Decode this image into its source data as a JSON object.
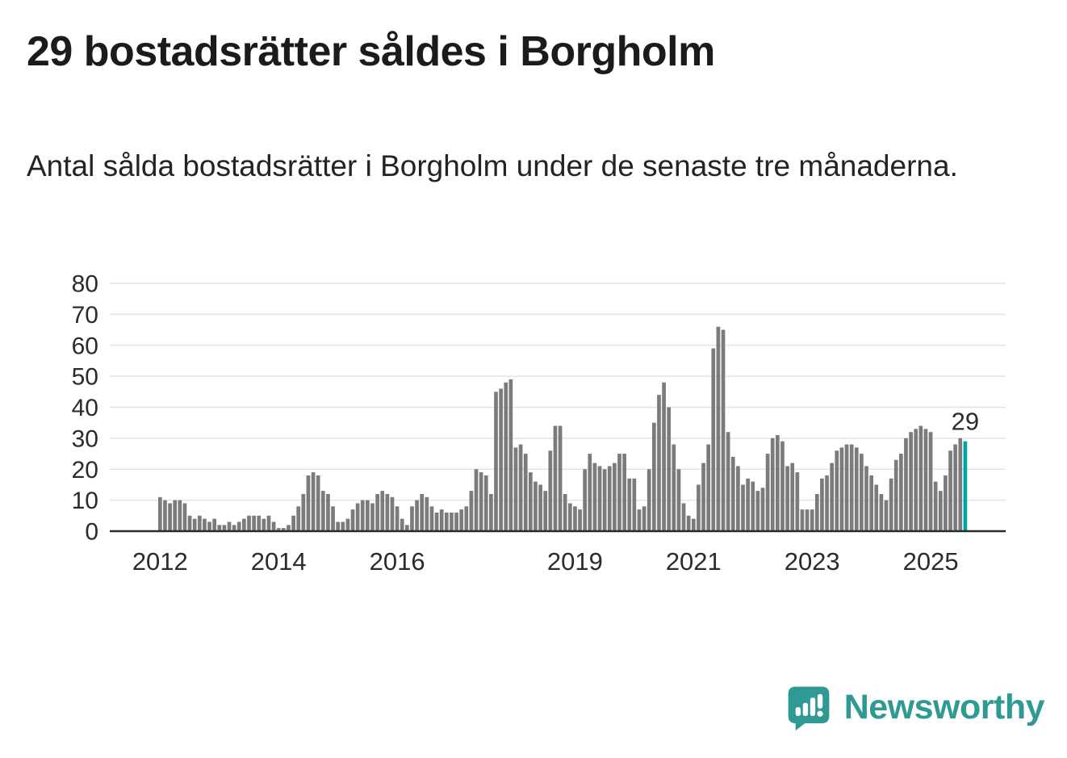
{
  "title": "29 bostadsrätter såldes i Borgholm",
  "subtitle": "Antal sålda bostadsrätter i Borgholm under de senaste tre månaderna.",
  "branding": {
    "name": "Newsworthy",
    "icon": "newsworthy-speech-bubble-chart-icon"
  },
  "colors": {
    "bar": "#7b7b7b",
    "highlight": "#00a3a3",
    "grid": "#e4e4e4",
    "axis": "#2b2b2b",
    "text": "#2b2b2b",
    "brand": "#2e9a93"
  },
  "chart_data": {
    "type": "bar",
    "title": "29 bostadsrätter såldes i Borgholm",
    "subtitle": "Antal sålda bostadsrätter i Borgholm under de senaste tre månaderna.",
    "xlabel": "",
    "ylabel": "",
    "start": "2012-01",
    "end": "2025-08",
    "frequency": "monthly",
    "x_tick_labels": [
      2012,
      2014,
      2016,
      2019,
      2021,
      2023,
      2025
    ],
    "ylim": [
      0,
      80
    ],
    "y_ticks": [
      0,
      10,
      20,
      30,
      40,
      50,
      60,
      70,
      80
    ],
    "grid": true,
    "legend": false,
    "highlight_last": true,
    "last_value_label": "29",
    "values": [
      11,
      10,
      9,
      10,
      10,
      9,
      5,
      4,
      5,
      4,
      3,
      4,
      2,
      2,
      3,
      2,
      3,
      4,
      5,
      5,
      5,
      4,
      5,
      3,
      1,
      1,
      2,
      5,
      8,
      12,
      18,
      19,
      18,
      13,
      12,
      8,
      3,
      3,
      4,
      7,
      9,
      10,
      10,
      9,
      12,
      13,
      12,
      11,
      8,
      4,
      2,
      8,
      10,
      12,
      11,
      8,
      6,
      7,
      6,
      6,
      6,
      7,
      8,
      13,
      20,
      19,
      18,
      12,
      45,
      46,
      48,
      49,
      27,
      28,
      25,
      19,
      16,
      15,
      13,
      26,
      34,
      34,
      12,
      9,
      8,
      7,
      20,
      25,
      22,
      21,
      20,
      21,
      22,
      25,
      25,
      17,
      17,
      7,
      8,
      20,
      35,
      44,
      48,
      40,
      28,
      20,
      9,
      5,
      4,
      15,
      22,
      28,
      59,
      66,
      65,
      32,
      24,
      21,
      15,
      17,
      16,
      13,
      14,
      25,
      30,
      31,
      29,
      21,
      22,
      19,
      7,
      7,
      7,
      12,
      17,
      18,
      22,
      26,
      27,
      28,
      28,
      27,
      25,
      21,
      18,
      15,
      12,
      10,
      17,
      23,
      25,
      30,
      32,
      33,
      34,
      33,
      32,
      16,
      13,
      18,
      26,
      28,
      30,
      29
    ]
  }
}
